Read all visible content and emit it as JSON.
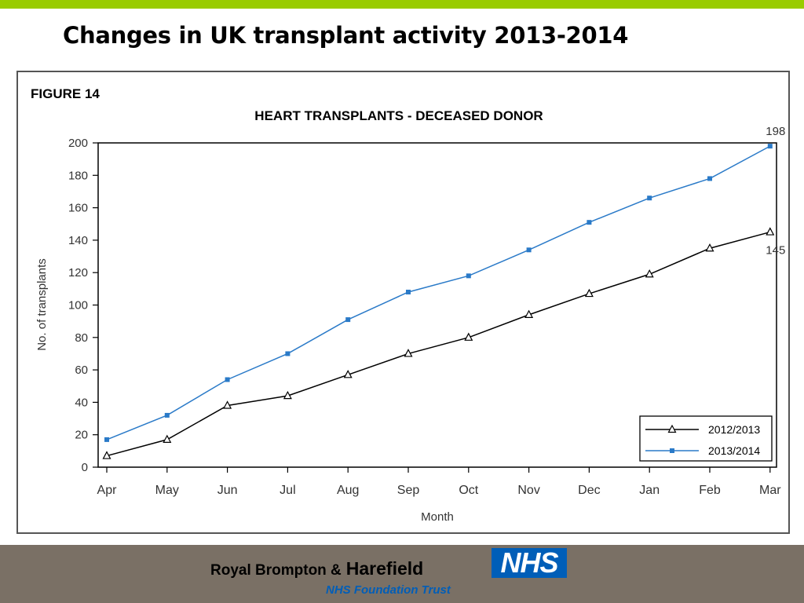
{
  "slide": {
    "title": "Changes in UK transplant activity 2013-2014"
  },
  "figure": {
    "label": "FIGURE 14"
  },
  "chart_data": {
    "type": "line",
    "title": "HEART TRANSPLANTS - DECEASED DONOR",
    "xlabel": "Month",
    "ylabel": "No. of transplants",
    "categories": [
      "Apr",
      "May",
      "Jun",
      "Jul",
      "Aug",
      "Sep",
      "Oct",
      "Nov",
      "Dec",
      "Jan",
      "Feb",
      "Mar"
    ],
    "ylim": [
      0,
      200
    ],
    "yticks": [
      0,
      20,
      40,
      60,
      80,
      100,
      120,
      140,
      160,
      180,
      200
    ],
    "grid": false,
    "legend_position": "bottom-right",
    "series": [
      {
        "name": "2012/2013",
        "marker": "triangle",
        "color": "#000000",
        "values": [
          7,
          17,
          38,
          44,
          57,
          70,
          80,
          94,
          107,
          119,
          135,
          145
        ],
        "end_label": "145"
      },
      {
        "name": "2013/2014",
        "marker": "square",
        "color": "#2a7ac8",
        "values": [
          17,
          32,
          54,
          70,
          91,
          108,
          118,
          134,
          151,
          166,
          178,
          198
        ],
        "end_label": "198"
      }
    ]
  },
  "footer": {
    "org_part1": "Royal Brompton &",
    "org_part2": "Harefield",
    "logo_text": "NHS",
    "subtitle": "NHS Foundation Trust"
  }
}
